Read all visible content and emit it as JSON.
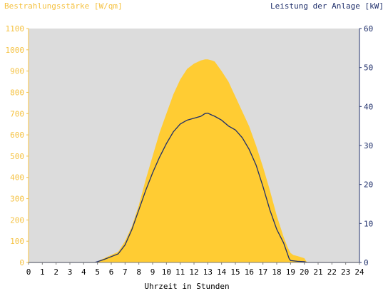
{
  "chart_data": {
    "type": "area",
    "title_left": "Bestrahlungsstärke [W/qm]",
    "title_right": "Leistung der Anlage [kW]",
    "xlabel": "Uhrzeit in Stunden",
    "x_ticks": [
      "0",
      "1",
      "2",
      "3",
      "4",
      "5",
      "6",
      "7",
      "8",
      "9",
      "10",
      "11",
      "12",
      "13",
      "14",
      "15",
      "16",
      "17",
      "18",
      "19",
      "20",
      "21",
      "22",
      "23",
      "24"
    ],
    "xlim": [
      0,
      24
    ],
    "ylim_left": [
      0,
      1100
    ],
    "ylim_right": [
      0,
      60
    ],
    "left_ticks": [
      0,
      100,
      200,
      300,
      400,
      500,
      600,
      700,
      800,
      900,
      1000,
      1100
    ],
    "right_ticks": [
      0,
      10,
      20,
      30,
      40,
      50,
      60
    ],
    "grid": false,
    "colors": {
      "background": "#dcdcdc",
      "irradiance_fill": "#ffcc33",
      "power_line": "#1f2f6b",
      "left_axis": "#f5c242",
      "right_axis": "#1f2f6b"
    },
    "series": [
      {
        "axis": "left",
        "style": "area",
        "x": [
          0,
          4.8,
          5.0,
          5.5,
          6.0,
          6.5,
          7.0,
          7.5,
          8.0,
          8.5,
          9.0,
          9.5,
          10.0,
          10.5,
          11.0,
          11.5,
          12.0,
          12.5,
          12.8,
          13.0,
          13.3,
          13.5,
          14.0,
          14.5,
          15.0,
          15.5,
          16.0,
          16.5,
          17.0,
          17.5,
          18.0,
          18.5,
          18.8,
          19.0,
          19.2,
          19.5,
          20.0,
          20.2,
          24
        ],
        "y": [
          0,
          0,
          5,
          20,
          35,
          50,
          100,
          170,
          270,
          390,
          500,
          610,
          700,
          790,
          860,
          910,
          935,
          950,
          955,
          955,
          950,
          945,
          900,
          850,
          780,
          710,
          640,
          550,
          450,
          340,
          220,
          120,
          70,
          45,
          35,
          30,
          20,
          0,
          0
        ]
      },
      {
        "axis": "right",
        "style": "line",
        "x": [
          0,
          4.8,
          5.0,
          5.5,
          6.0,
          6.5,
          7.0,
          7.5,
          8.0,
          8.5,
          9.0,
          9.5,
          10.0,
          10.5,
          11.0,
          11.5,
          12.0,
          12.5,
          12.8,
          13.0,
          13.3,
          13.5,
          14.0,
          14.5,
          15.0,
          15.5,
          16.0,
          16.5,
          17.0,
          17.5,
          18.0,
          18.5,
          18.7,
          18.9,
          19.0,
          19.5,
          20.0,
          20.2,
          24
        ],
        "y": [
          0,
          0,
          0.2,
          0.8,
          1.5,
          2.2,
          4.5,
          8.5,
          13.5,
          18.5,
          23,
          27,
          30.5,
          33.5,
          35.5,
          36.5,
          37,
          37.5,
          38.2,
          38.3,
          37.8,
          37.5,
          36.5,
          35,
          34,
          32,
          29,
          25,
          19.5,
          13.5,
          8.5,
          5,
          3,
          1,
          0.5,
          0.3,
          0.2,
          0,
          0
        ]
      }
    ]
  }
}
